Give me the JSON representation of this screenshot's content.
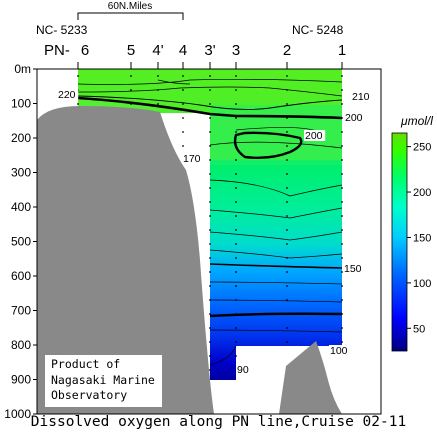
{
  "chart_data": {
    "type": "contour",
    "title": "Dissolved oxygen along PN line,Cruise 02-11",
    "scale_label": "60N.Miles",
    "station_id_left": "NC- 5233",
    "station_id_right": "NC- 5248",
    "station_prefix": "PN-",
    "stations": [
      "6",
      "5",
      "4'",
      "4",
      "3'",
      "3",
      "2",
      "1"
    ],
    "depth_unit": "m",
    "y_ticks": [
      0,
      100,
      200,
      300,
      400,
      500,
      600,
      700,
      800,
      900,
      1000
    ],
    "ylim": [
      0,
      1000
    ],
    "colorbar": {
      "unit": "μmol/l",
      "ticks": [
        50,
        100,
        150,
        200,
        250
      ],
      "range": [
        25,
        265
      ],
      "colors": [
        "#000080",
        "#0000ff",
        "#0066ff",
        "#00ccff",
        "#00ffcc",
        "#00ff66",
        "#33ff00",
        "#66dd00"
      ]
    },
    "contour_labels": [
      "220",
      "210",
      "200",
      "200",
      "170",
      "150",
      "100",
      "90"
    ],
    "credit": [
      "Product of",
      "Nagasaki Marine",
      "Observatory"
    ],
    "colors": {
      "seafloor": "#898989",
      "background": "#ffffff"
    }
  }
}
